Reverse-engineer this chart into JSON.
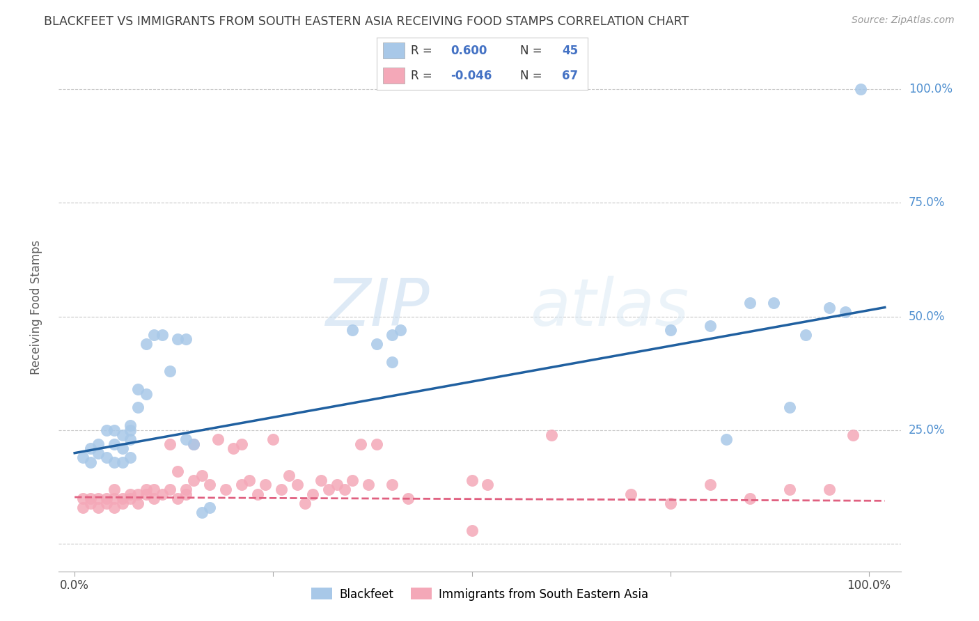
{
  "title": "BLACKFEET VS IMMIGRANTS FROM SOUTH EASTERN ASIA RECEIVING FOOD STAMPS CORRELATION CHART",
  "source": "Source: ZipAtlas.com",
  "ylabel": "Receiving Food Stamps",
  "legend_label1": "Blackfeet",
  "legend_label2": "Immigrants from South Eastern Asia",
  "r1": "0.600",
  "n1": "45",
  "r2": "-0.046",
  "n2": "67",
  "blue_color": "#a8c8e8",
  "pink_color": "#f4a8b8",
  "blue_line_color": "#2060a0",
  "pink_line_color": "#e06080",
  "watermark_zip": "ZIP",
  "watermark_atlas": "atlas",
  "background_color": "#ffffff",
  "grid_color": "#c8c8c8",
  "title_color": "#404040",
  "axis_label_color": "#606060",
  "tick_label_color_right": "#5090d0",
  "blue_points_x": [
    0.01,
    0.02,
    0.02,
    0.03,
    0.03,
    0.04,
    0.04,
    0.05,
    0.05,
    0.05,
    0.06,
    0.06,
    0.06,
    0.07,
    0.07,
    0.07,
    0.07,
    0.08,
    0.08,
    0.09,
    0.09,
    0.1,
    0.11,
    0.12,
    0.13,
    0.14,
    0.14,
    0.15,
    0.16,
    0.17,
    0.35,
    0.38,
    0.4,
    0.4,
    0.41,
    0.75,
    0.8,
    0.82,
    0.85,
    0.88,
    0.9,
    0.92,
    0.95,
    0.97,
    0.99
  ],
  "blue_points_y": [
    0.19,
    0.21,
    0.18,
    0.2,
    0.22,
    0.19,
    0.25,
    0.22,
    0.18,
    0.25,
    0.24,
    0.21,
    0.18,
    0.26,
    0.25,
    0.23,
    0.19,
    0.3,
    0.34,
    0.33,
    0.44,
    0.46,
    0.46,
    0.38,
    0.45,
    0.23,
    0.45,
    0.22,
    0.07,
    0.08,
    0.47,
    0.44,
    0.46,
    0.4,
    0.47,
    0.47,
    0.48,
    0.23,
    0.53,
    0.53,
    0.3,
    0.46,
    0.52,
    0.51,
    1.0
  ],
  "pink_points_x": [
    0.01,
    0.01,
    0.02,
    0.02,
    0.03,
    0.03,
    0.04,
    0.04,
    0.05,
    0.05,
    0.05,
    0.06,
    0.06,
    0.07,
    0.07,
    0.08,
    0.08,
    0.09,
    0.09,
    0.1,
    0.1,
    0.11,
    0.12,
    0.12,
    0.13,
    0.13,
    0.14,
    0.14,
    0.15,
    0.15,
    0.16,
    0.17,
    0.18,
    0.19,
    0.2,
    0.21,
    0.21,
    0.22,
    0.23,
    0.24,
    0.25,
    0.26,
    0.27,
    0.28,
    0.29,
    0.3,
    0.31,
    0.32,
    0.33,
    0.34,
    0.35,
    0.36,
    0.37,
    0.38,
    0.4,
    0.42,
    0.5,
    0.52,
    0.6,
    0.7,
    0.75,
    0.8,
    0.85,
    0.9,
    0.95,
    0.98,
    0.5
  ],
  "pink_points_y": [
    0.1,
    0.08,
    0.1,
    0.09,
    0.1,
    0.08,
    0.1,
    0.09,
    0.1,
    0.08,
    0.12,
    0.1,
    0.09,
    0.11,
    0.1,
    0.11,
    0.09,
    0.12,
    0.11,
    0.12,
    0.1,
    0.11,
    0.12,
    0.22,
    0.1,
    0.16,
    0.12,
    0.11,
    0.22,
    0.14,
    0.15,
    0.13,
    0.23,
    0.12,
    0.21,
    0.13,
    0.22,
    0.14,
    0.11,
    0.13,
    0.23,
    0.12,
    0.15,
    0.13,
    0.09,
    0.11,
    0.14,
    0.12,
    0.13,
    0.12,
    0.14,
    0.22,
    0.13,
    0.22,
    0.13,
    0.1,
    0.14,
    0.13,
    0.24,
    0.11,
    0.09,
    0.13,
    0.1,
    0.12,
    0.12,
    0.24,
    0.03
  ],
  "ytick_positions": [
    0.0,
    0.25,
    0.5,
    0.75,
    1.0
  ],
  "ytick_labels": [
    "",
    "25.0%",
    "50.0%",
    "75.0%",
    "100.0%"
  ],
  "xtick_positions": [
    0.0,
    0.25,
    0.5,
    0.75,
    1.0
  ],
  "xtick_labels": [
    "0.0%",
    "",
    "",
    "",
    "100.0%"
  ],
  "xlim": [
    -0.02,
    1.04
  ],
  "ylim": [
    -0.06,
    1.1
  ]
}
